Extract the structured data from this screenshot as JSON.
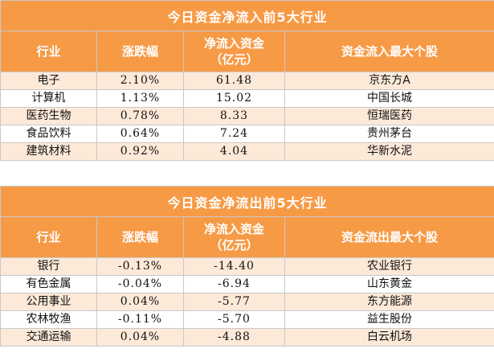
{
  "inflow": {
    "title": "今日资金净流入前5大行业",
    "headers": {
      "industry": "行业",
      "change": "涨跌幅",
      "net_line1": "净流入资金",
      "net_line2": "（亿元）",
      "top_stock": "资金流入最大个股"
    },
    "rows": [
      {
        "industry": "电子",
        "change": "2.10%",
        "net": "61.48",
        "stock": "京东方A"
      },
      {
        "industry": "计算机",
        "change": "1.13%",
        "net": "15.02",
        "stock": "中国长城"
      },
      {
        "industry": "医药生物",
        "change": "0.78%",
        "net": "8.33",
        "stock": "恒瑞医药"
      },
      {
        "industry": "食品饮料",
        "change": "0.64%",
        "net": "7.24",
        "stock": "贵州茅台"
      },
      {
        "industry": "建筑材料",
        "change": "0.92%",
        "net": "4.04",
        "stock": "华新水泥"
      }
    ]
  },
  "outflow": {
    "title": "今日资金净流出前5大行业",
    "headers": {
      "industry": "行业",
      "change": "涨跌幅",
      "net_line1": "净流入资金",
      "net_line2": "（亿元）",
      "top_stock": "资金流出最大个股"
    },
    "rows": [
      {
        "industry": "银行",
        "change": "-0.13%",
        "net": "-14.40",
        "stock": "农业银行"
      },
      {
        "industry": "有色金属",
        "change": "-0.04%",
        "net": "-6.94",
        "stock": "山东黄金"
      },
      {
        "industry": "公用事业",
        "change": "0.04%",
        "net": "-5.77",
        "stock": "东方能源"
      },
      {
        "industry": "农林牧渔",
        "change": "-0.11%",
        "net": "-5.70",
        "stock": "益生股份"
      },
      {
        "industry": "交通运输",
        "change": "0.04%",
        "net": "-4.88",
        "stock": "白云机场"
      }
    ]
  }
}
